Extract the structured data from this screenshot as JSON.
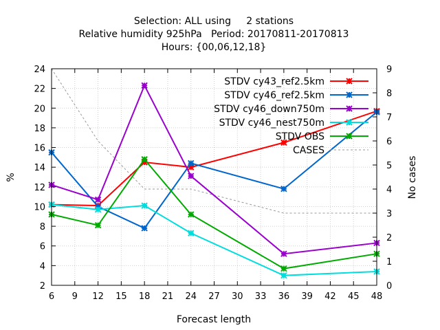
{
  "chart_data": {
    "type": "line",
    "title_lines": [
      "Selection: ALL using     2 stations",
      "Relative humidity 925hPa   Period: 20170811-20170813",
      "Hours: {00,06,12,18}"
    ],
    "xlabel": "Forecast length",
    "ylabel": "%",
    "y2label": "No cases",
    "xlim": [
      6,
      48
    ],
    "ylim": [
      2,
      24
    ],
    "y2lim": [
      0,
      9
    ],
    "xticks": [
      6,
      9,
      12,
      15,
      18,
      21,
      24,
      27,
      30,
      33,
      36,
      39,
      42,
      45,
      48
    ],
    "yticks": [
      2,
      4,
      6,
      8,
      10,
      12,
      14,
      16,
      18,
      20,
      22,
      24
    ],
    "y2ticks": [
      0,
      1,
      2,
      3,
      4,
      5,
      6,
      7,
      8,
      9
    ],
    "grid": true,
    "legend_position": "top-right",
    "series": [
      {
        "name": "STDV cy43_ref2.5km",
        "color": "#ff0000",
        "x": [
          6,
          12,
          18,
          24,
          36,
          48
        ],
        "values": [
          10.2,
          10.1,
          14.5,
          14.0,
          16.5,
          19.7
        ]
      },
      {
        "name": "STDV cy46_ref2.5km",
        "color": "#0066cc",
        "x": [
          6,
          12,
          18,
          24,
          36,
          48
        ],
        "values": [
          15.5,
          10.0,
          7.8,
          14.4,
          11.8,
          19.6
        ]
      },
      {
        "name": "STDV cy46_down750m",
        "color": "#9900cc",
        "x": [
          6,
          12,
          18,
          24,
          36,
          48
        ],
        "values": [
          12.2,
          10.7,
          22.3,
          13.1,
          5.2,
          6.3
        ]
      },
      {
        "name": "STDV cy46_nest750m",
        "color": "#00dddd",
        "x": [
          6,
          12,
          18,
          24,
          36,
          48
        ],
        "values": [
          10.2,
          9.7,
          10.1,
          7.3,
          3.0,
          3.4
        ]
      },
      {
        "name": "STDV OBS",
        "color": "#00aa00",
        "x": [
          6,
          12,
          18,
          24,
          36,
          48
        ],
        "values": [
          9.2,
          8.1,
          14.8,
          9.2,
          3.7,
          5.2
        ]
      }
    ],
    "cases": {
      "name": "CASES",
      "color": "#999999",
      "axis": "y2",
      "x": [
        6,
        12,
        18,
        24,
        36,
        48
      ],
      "values": [
        9.0,
        6.0,
        4.0,
        4.0,
        3.0,
        3.0
      ]
    }
  }
}
